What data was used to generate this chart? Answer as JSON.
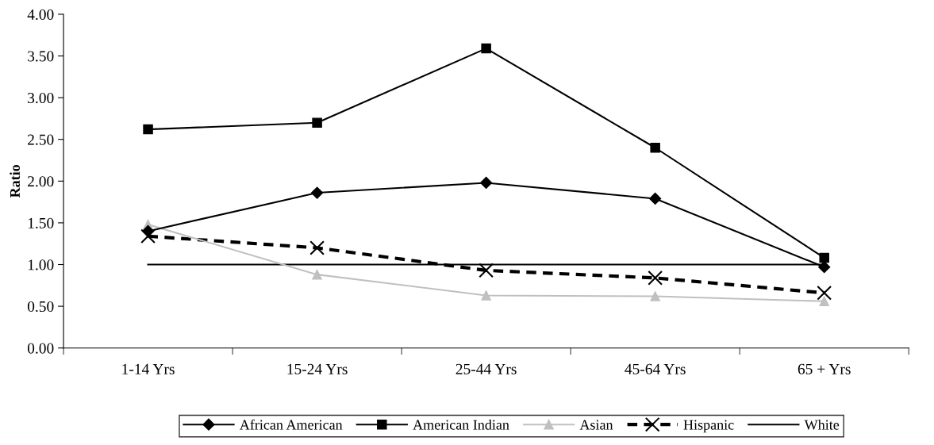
{
  "chart_data": {
    "type": "line",
    "ylabel": "Ratio",
    "categories": [
      "1-14 Yrs",
      "15-24 Yrs",
      "25-44 Yrs",
      "45-64 Yrs",
      "65 + Yrs"
    ],
    "ylim": [
      0,
      4
    ],
    "yticks": [
      {
        "value": 0,
        "label": "0.00"
      },
      {
        "value": 0.5,
        "label": "0.50"
      },
      {
        "value": 1,
        "label": "1.00"
      },
      {
        "value": 1.5,
        "label": "1.50"
      },
      {
        "value": 2,
        "label": "2.00"
      },
      {
        "value": 2.5,
        "label": "2.50"
      },
      {
        "value": 3,
        "label": "3.00"
      },
      {
        "value": 3.5,
        "label": "3.50"
      },
      {
        "value": 4,
        "label": "4.00"
      }
    ],
    "grid": false,
    "legend": "bottom",
    "series": [
      {
        "name": "African American",
        "color": "#000000",
        "marker": "diamond",
        "line_style": "solid",
        "values": [
          1.4,
          1.86,
          1.98,
          1.79,
          0.97
        ]
      },
      {
        "name": "American Indian",
        "color": "#000000",
        "marker": "square",
        "line_style": "solid",
        "values": [
          2.62,
          2.7,
          3.59,
          2.4,
          1.08
        ]
      },
      {
        "name": "Asian",
        "color": "#c0c0c0",
        "marker": "triangle",
        "line_style": "solid",
        "values": [
          1.48,
          0.88,
          0.63,
          0.62,
          0.56
        ]
      },
      {
        "name": "Hispanic",
        "color": "#000000",
        "marker": "cross",
        "line_style": "dashed",
        "values": [
          1.34,
          1.2,
          0.93,
          0.84,
          0.66
        ]
      },
      {
        "name": "White",
        "color": "#000000",
        "marker": "none",
        "line_style": "solid",
        "values": [
          1,
          1,
          1,
          1,
          1
        ]
      }
    ]
  }
}
